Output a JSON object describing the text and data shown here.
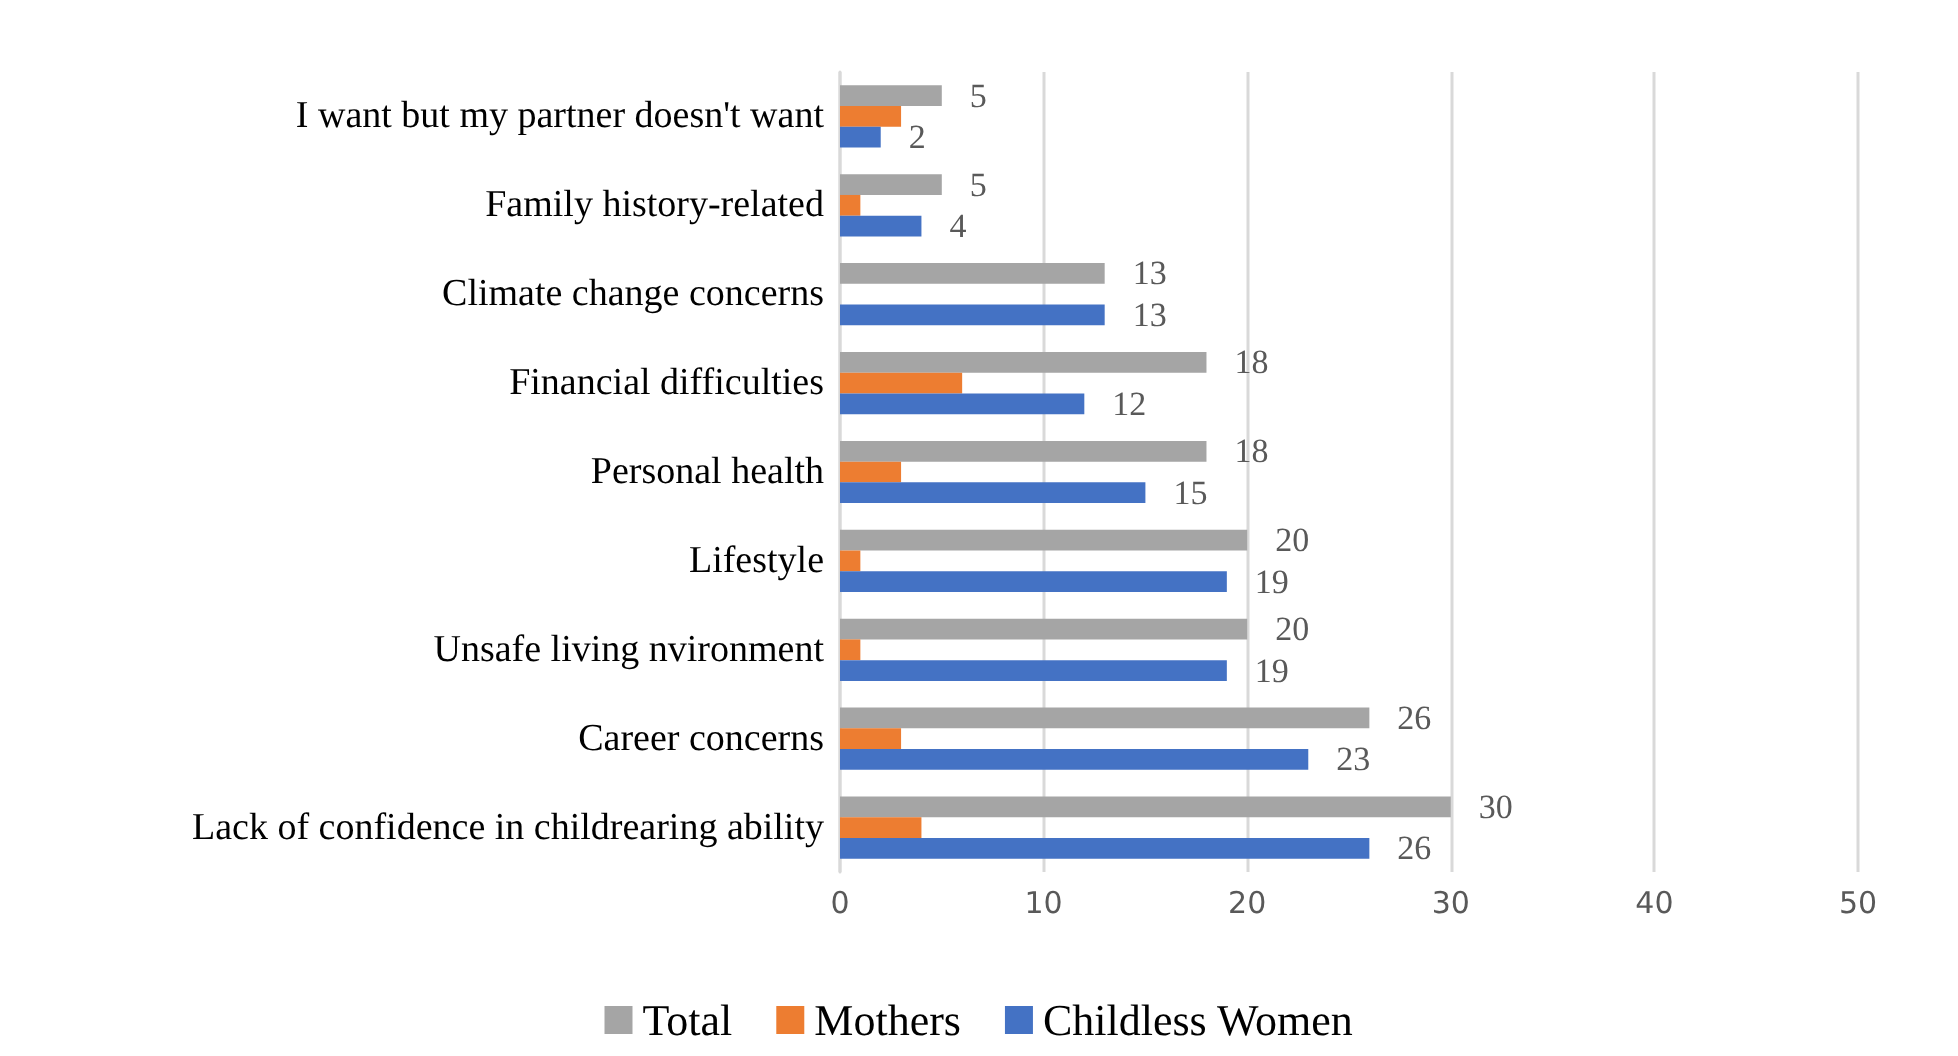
{
  "chart_data": {
    "type": "bar",
    "orientation": "horizontal",
    "categories": [
      "I want but my partner doesn't want",
      "Family history-related",
      "Climate change concerns",
      "Financial difficulties",
      "Personal health",
      "Lifestyle",
      "Unsafe living nvironment",
      "Career concerns",
      "Lack of confidence in childrearing ability"
    ],
    "series": [
      {
        "name": "Total",
        "color": "#a5a5a5",
        "values": [
          5,
          5,
          13,
          18,
          18,
          20,
          20,
          26,
          30
        ],
        "value_labels": [
          "5",
          "5",
          "13",
          "18",
          "18",
          "20",
          "20",
          "26",
          "30"
        ]
      },
      {
        "name": "Mothers",
        "color": "#ed7d31",
        "values": [
          3,
          1,
          0,
          6,
          3,
          1,
          1,
          3,
          4
        ]
      },
      {
        "name": "Childless Women",
        "color": "#4472c4",
        "values": [
          2,
          4,
          13,
          12,
          15,
          19,
          19,
          23,
          26
        ],
        "value_labels": [
          "2",
          "4",
          "13",
          "12",
          "15",
          "19",
          "19",
          "23",
          "26"
        ]
      }
    ],
    "xlim": [
      0,
      50
    ],
    "xticks": [
      0,
      10,
      20,
      30,
      40,
      50
    ],
    "grid": "x",
    "legend": "bottom"
  }
}
